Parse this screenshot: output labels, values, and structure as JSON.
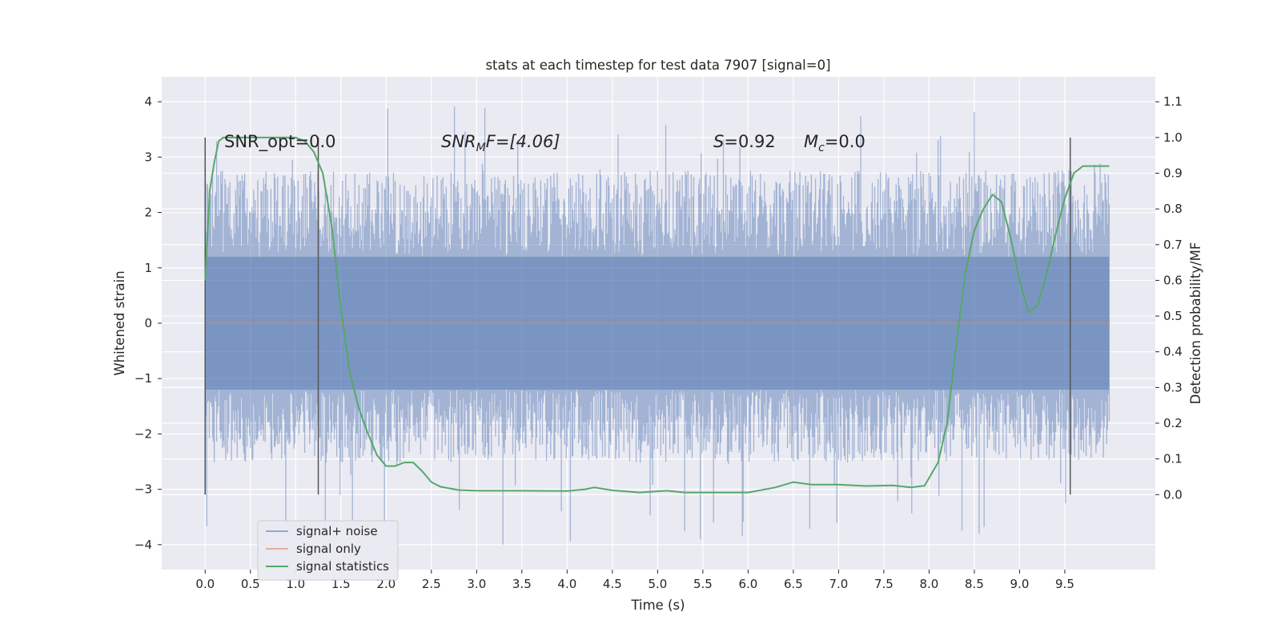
{
  "chart_data": {
    "type": "line",
    "title": "stats at each timestep for test data 7907 [signal=0]",
    "xlabel": "Time (s)",
    "ylabel": "Whitened strain",
    "ylabel_right": "Detection probability/MF",
    "xlim": [
      -0.48,
      10.5
    ],
    "ylim": [
      -4.45,
      4.45
    ],
    "ylim_right": [
      -0.21,
      1.17
    ],
    "x_ticks": [
      0.0,
      0.5,
      1.0,
      1.5,
      2.0,
      2.5,
      3.0,
      3.5,
      4.0,
      4.5,
      5.0,
      5.5,
      6.0,
      6.5,
      7.0,
      7.5,
      8.0,
      8.5,
      9.0,
      9.5
    ],
    "x_tick_labels": [
      "0.0",
      "0.5",
      "1.0",
      "1.5",
      "2.0",
      "2.5",
      "3.0",
      "3.5",
      "4.0",
      "4.5",
      "5.0",
      "5.5",
      "6.0",
      "6.5",
      "7.0",
      "7.5",
      "8.0",
      "8.5",
      "9.0",
      "9.5"
    ],
    "y_ticks": [
      4,
      3,
      2,
      1,
      0,
      -1,
      -2,
      -3,
      -4
    ],
    "y_tick_labels": [
      "4",
      "3",
      "2",
      "1",
      "0",
      "−1",
      "−2",
      "−3",
      "−4"
    ],
    "y_right_ticks": [
      1.1,
      1.0,
      0.9,
      0.8,
      0.7,
      0.6,
      0.5,
      0.4,
      0.3,
      0.2,
      0.1,
      0.0
    ],
    "y_right_tick_labels": [
      "1.1",
      "1.0",
      "0.9",
      "0.8",
      "0.7",
      "0.6",
      "0.5",
      "0.4",
      "0.3",
      "0.2",
      "0.1",
      "0.0"
    ],
    "grid": true,
    "legend_position": "lower-left",
    "annotations": {
      "snr_opt": "SNR_opt=0.0",
      "snr_mf_prefix": "SNR",
      "snr_mf_sub": "M",
      "snr_mf_suffix": "F=[4.06]",
      "s_symbol": "S",
      "s_value": "=0.92",
      "mc_symbol": "M",
      "mc_sub": "c",
      "mc_value": "=0.0"
    },
    "vertical_markers": [
      0.0,
      1.25,
      9.56
    ],
    "noise_envelope": {
      "core_amplitude": 1.2,
      "typical_peak": 2.4,
      "max": 3.95,
      "min": -4.05,
      "x_range": [
        0.0,
        9.99
      ]
    },
    "series": [
      {
        "name": "signal+ noise",
        "axis": "left",
        "color": "#4c72b0",
        "x": [
          0.0,
          10.0
        ],
        "y": [
          0.0,
          0.0
        ]
      },
      {
        "name": "signal only",
        "axis": "left",
        "color": "#dd8452",
        "x": [
          0.0,
          10.0
        ],
        "y": [
          0.0,
          0.0
        ]
      },
      {
        "name": "signal statistics",
        "axis": "right",
        "color": "#55a868",
        "x": [
          0.0,
          0.05,
          0.1,
          0.15,
          0.2,
          0.3,
          0.5,
          0.8,
          1.0,
          1.1,
          1.2,
          1.3,
          1.4,
          1.5,
          1.6,
          1.7,
          1.8,
          1.9,
          2.0,
          2.1,
          2.2,
          2.3,
          2.4,
          2.5,
          2.6,
          2.8,
          3.0,
          3.5,
          4.0,
          4.2,
          4.3,
          4.5,
          4.8,
          5.1,
          5.3,
          5.6,
          6.0,
          6.3,
          6.5,
          6.7,
          7.0,
          7.3,
          7.6,
          7.8,
          7.95,
          8.1,
          8.2,
          8.3,
          8.4,
          8.5,
          8.6,
          8.7,
          8.8,
          8.9,
          9.0,
          9.1,
          9.2,
          9.3,
          9.4,
          9.5,
          9.6,
          9.7,
          9.8,
          9.9,
          9.99
        ],
        "y": [
          0.6,
          0.85,
          0.93,
          0.99,
          1.0,
          1.0,
          1.0,
          1.0,
          1.0,
          0.99,
          0.96,
          0.9,
          0.75,
          0.52,
          0.34,
          0.24,
          0.17,
          0.11,
          0.08,
          0.08,
          0.09,
          0.09,
          0.065,
          0.035,
          0.022,
          0.013,
          0.011,
          0.011,
          0.01,
          0.015,
          0.02,
          0.012,
          0.006,
          0.011,
          0.006,
          0.006,
          0.006,
          0.02,
          0.035,
          0.028,
          0.028,
          0.024,
          0.026,
          0.02,
          0.025,
          0.09,
          0.2,
          0.42,
          0.62,
          0.74,
          0.8,
          0.84,
          0.82,
          0.72,
          0.6,
          0.51,
          0.53,
          0.62,
          0.73,
          0.83,
          0.9,
          0.92,
          0.92,
          0.92,
          0.92
        ]
      }
    ]
  }
}
